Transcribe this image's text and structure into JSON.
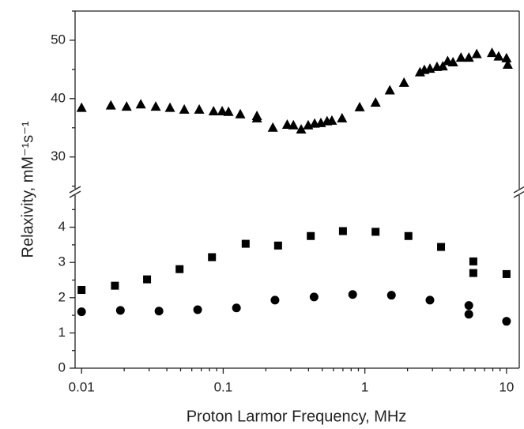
{
  "chart_data": [
    {
      "type": "scatter",
      "xscale": "log",
      "xlim": [
        0.009,
        12.3
      ],
      "ylim": [
        24,
        55
      ],
      "yticks": [
        30,
        40,
        50
      ],
      "yminor_ticks": [
        25,
        35,
        45,
        55
      ],
      "series": [
        {
          "marker": "triangle",
          "color": "#000000",
          "x": [
            0.01,
            0.0161,
            0.0208,
            0.0262,
            0.0334,
            0.0421,
            0.0531,
            0.0677,
            0.0855,
            0.0983,
            0.109,
            0.132,
            0.173,
            0.173,
            0.224,
            0.283,
            0.313,
            0.355,
            0.398,
            0.442,
            0.489,
            0.541,
            0.585,
            0.69,
            0.919,
            1.19,
            1.5,
            1.89,
            2.45,
            2.63,
            2.88,
            3.23,
            3.55,
            3.84,
            4.19,
            4.77,
            5.42,
            6.16,
            7.9,
            8.8,
            10,
            10.2
          ],
          "values": [
            38.4,
            38.8,
            38.6,
            39.0,
            38.6,
            38.4,
            38.1,
            38.1,
            37.8,
            37.8,
            37.7,
            37.3,
            37.0,
            36.6,
            35.0,
            35.5,
            35.4,
            34.7,
            35.4,
            35.7,
            35.8,
            36.1,
            36.2,
            36.6,
            38.5,
            39.3,
            41.4,
            42.7,
            44.5,
            44.9,
            45.1,
            45.4,
            45.5,
            46.4,
            46.2,
            47.0,
            47.0,
            47.6,
            47.8,
            47.2,
            46.9,
            45.8
          ]
        }
      ]
    },
    {
      "type": "scatter",
      "xscale": "log",
      "xlim": [
        0.009,
        12.3
      ],
      "xticks": [
        0.01,
        0.1,
        1,
        10
      ],
      "xminor_ticks": [
        0.02,
        0.03,
        0.04,
        0.05,
        0.06,
        0.07,
        0.08,
        0.09,
        0.2,
        0.3,
        0.4,
        0.5,
        0.6,
        0.7,
        0.8,
        0.9,
        2,
        3,
        4,
        5,
        6,
        7,
        8,
        9
      ],
      "ylim": [
        0,
        5
      ],
      "yticks": [
        0,
        1,
        2,
        3,
        4
      ],
      "yminor_ticks": [
        0.5,
        1.5,
        2.5,
        3.5,
        4.5
      ],
      "xlabel": "Proton Larmor Frequency, MHz",
      "ylabel": "Relaxivity, mM⁻¹s⁻¹",
      "series": [
        {
          "marker": "square",
          "color": "#000000",
          "x": [
            0.01,
            0.0172,
            0.029,
            0.0492,
            0.0833,
            0.144,
            0.244,
            0.415,
            0.7,
            1.19,
            2.03,
            3.45,
            5.83,
            5.83,
            10
          ],
          "values": [
            2.22,
            2.34,
            2.52,
            2.81,
            3.15,
            3.53,
            3.48,
            3.75,
            3.89,
            3.87,
            3.75,
            3.44,
            3.03,
            2.7,
            2.67
          ]
        },
        {
          "marker": "circle",
          "color": "#000000",
          "x": [
            0.01,
            0.0188,
            0.0352,
            0.066,
            0.124,
            0.232,
            0.438,
            0.82,
            1.54,
            2.88,
            5.42,
            5.42,
            10
          ],
          "values": [
            1.6,
            1.64,
            1.62,
            1.66,
            1.71,
            1.93,
            2.02,
            2.09,
            2.07,
            1.93,
            1.78,
            1.53,
            1.33
          ]
        }
      ]
    }
  ]
}
